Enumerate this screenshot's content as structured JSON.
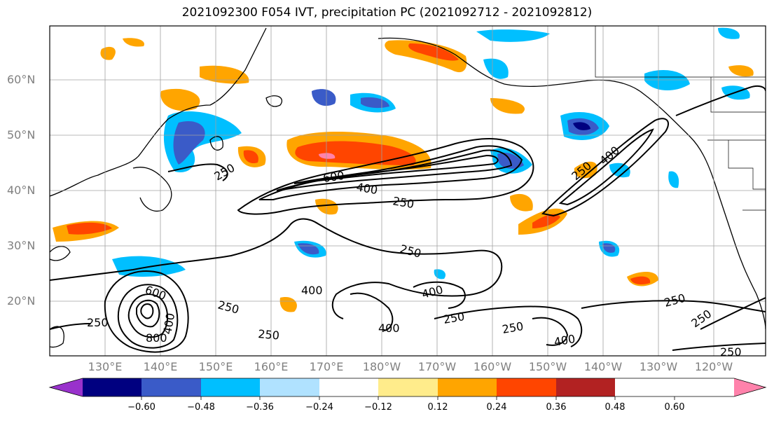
{
  "title": "2021092300 F054 IVT, precipitation PC (2021092712 - 2021092812)",
  "lat_labels": [
    "60°N",
    "50°N",
    "40°N",
    "30°N",
    "20°N"
  ],
  "lon_labels": [
    "130°E",
    "140°E",
    "150°E",
    "160°E",
    "170°E",
    "180°W",
    "170°W",
    "160°W",
    "150°W",
    "140°W",
    "130°W",
    "120°W"
  ],
  "contour_labels": [
    "250",
    "600",
    "400",
    "250",
    "250",
    "400",
    "250",
    "600",
    "400",
    "800",
    "250",
    "250",
    "400",
    "400",
    "250",
    "250",
    "400",
    "250",
    "250",
    "250",
    "400",
    "250"
  ],
  "colorbar": {
    "ticks": [
      "−0.60",
      "−0.48",
      "−0.36",
      "−0.24",
      "−0.12",
      "0.12",
      "0.24",
      "0.36",
      "0.48",
      "0.60"
    ],
    "colors": [
      "#9932cc",
      "#000080",
      "#3a5bc8",
      "#00bfff",
      "#b0e2ff",
      "#ffffff",
      "#ffec8b",
      "#ffa500",
      "#ff4500",
      "#b22222",
      "#ff82ab"
    ]
  }
}
